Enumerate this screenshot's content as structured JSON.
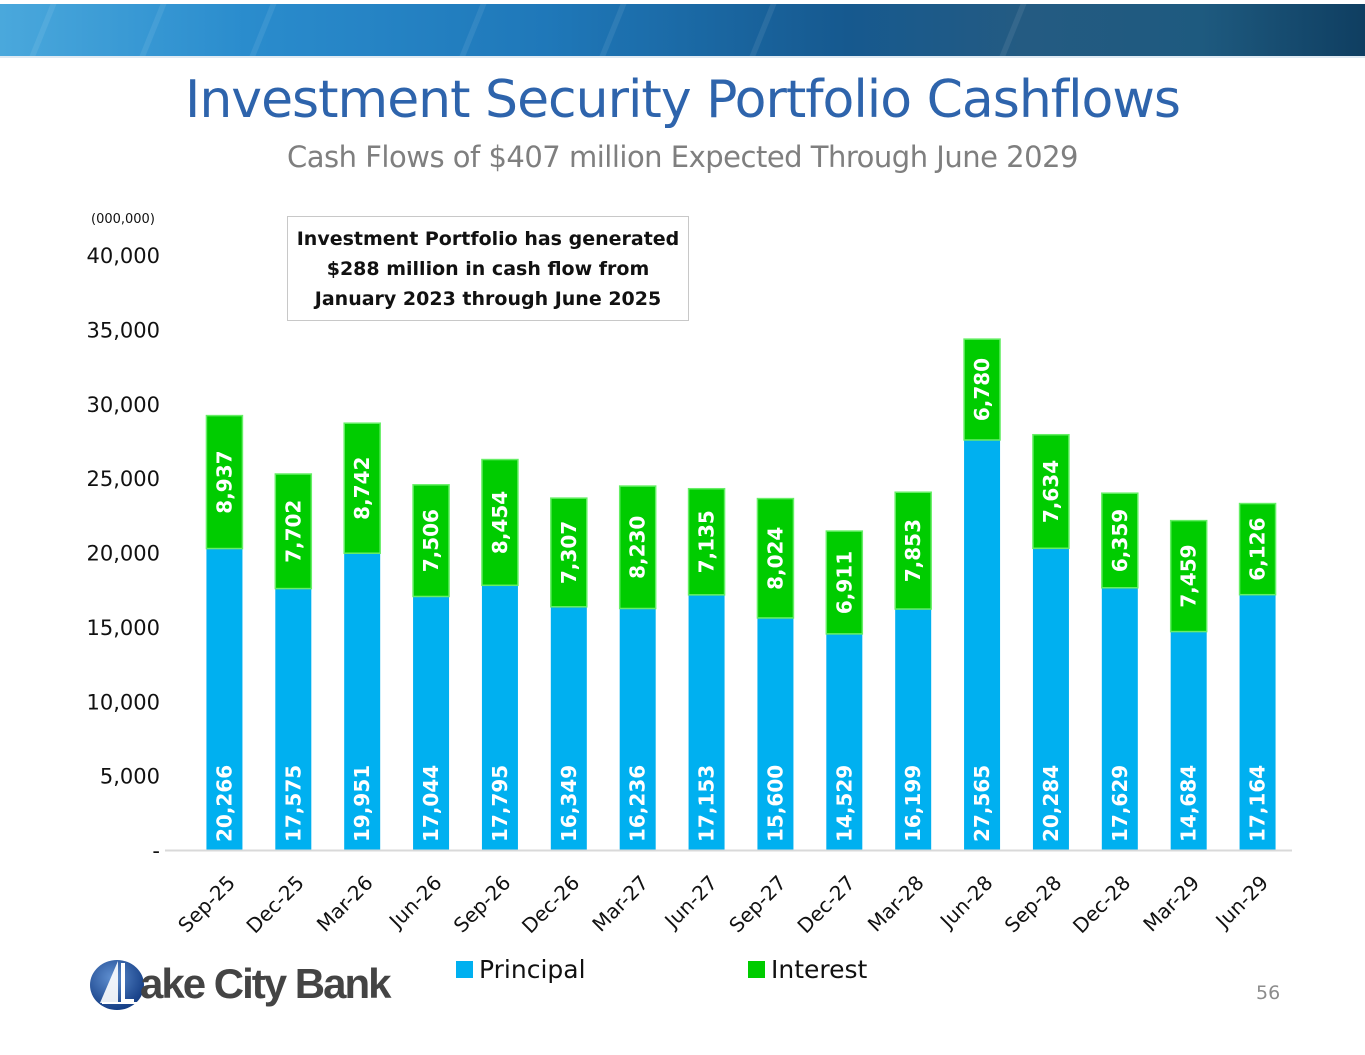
{
  "slide": {
    "title": "Investment Security Portfolio Cashflows",
    "subtitle": "Cash Flows of $407 million Expected Through June 2029",
    "units_label": "(000,000)",
    "callout_lines": [
      "Investment Portfolio has generated",
      "$288 million in cash flow from",
      "January 2023 through June 2025"
    ],
    "page_number": "56",
    "logo_text": "ake City Bank",
    "logo_letter": "L"
  },
  "chart_data": {
    "type": "bar",
    "stacked": true,
    "title": "",
    "xlabel": "",
    "ylabel": "(000,000)",
    "ylim": [
      0,
      40000
    ],
    "yticks": [
      0,
      5000,
      10000,
      15000,
      20000,
      25000,
      30000,
      35000,
      40000
    ],
    "ytick_labels": [
      "-",
      "5,000",
      "10,000",
      "15,000",
      "20,000",
      "25,000",
      "30,000",
      "35,000",
      "40,000"
    ],
    "grid": false,
    "legend_position": "bottom",
    "categories": [
      "Sep-25",
      "Dec-25",
      "Mar-26",
      "Jun-26",
      "Sep-26",
      "Dec-26",
      "Mar-27",
      "Jun-27",
      "Sep-27",
      "Dec-27",
      "Mar-28",
      "Jun-28",
      "Sep-28",
      "Dec-28",
      "Mar-29",
      "Jun-29"
    ],
    "series": [
      {
        "name": "Principal",
        "color": "#00b0f0",
        "values": [
          20266,
          17575,
          19951,
          17044,
          17795,
          16349,
          16236,
          17153,
          15600,
          14529,
          16199,
          27565,
          20284,
          17629,
          14684,
          17164
        ],
        "labels": [
          "20,266",
          "17,575",
          "19,951",
          "17,044",
          "17,795",
          "16,349",
          "16,236",
          "17,153",
          "15,600",
          "14,529",
          "16,199",
          "27,565",
          "20,284",
          "17,629",
          "14,684",
          "17,164"
        ]
      },
      {
        "name": "Interest",
        "color": "#00cc00",
        "values": [
          8937,
          7702,
          8742,
          7506,
          8454,
          7307,
          8230,
          7135,
          8024,
          6911,
          7853,
          6780,
          7634,
          6359,
          7459,
          6126
        ],
        "labels": [
          "8,937",
          "7,702",
          "8,742",
          "7,506",
          "8,454",
          "7,307",
          "8,230",
          "7,135",
          "8,024",
          "6,911",
          "7,853",
          "6,780",
          "7,634",
          "6,359",
          "7,459",
          "6,126"
        ]
      }
    ]
  }
}
